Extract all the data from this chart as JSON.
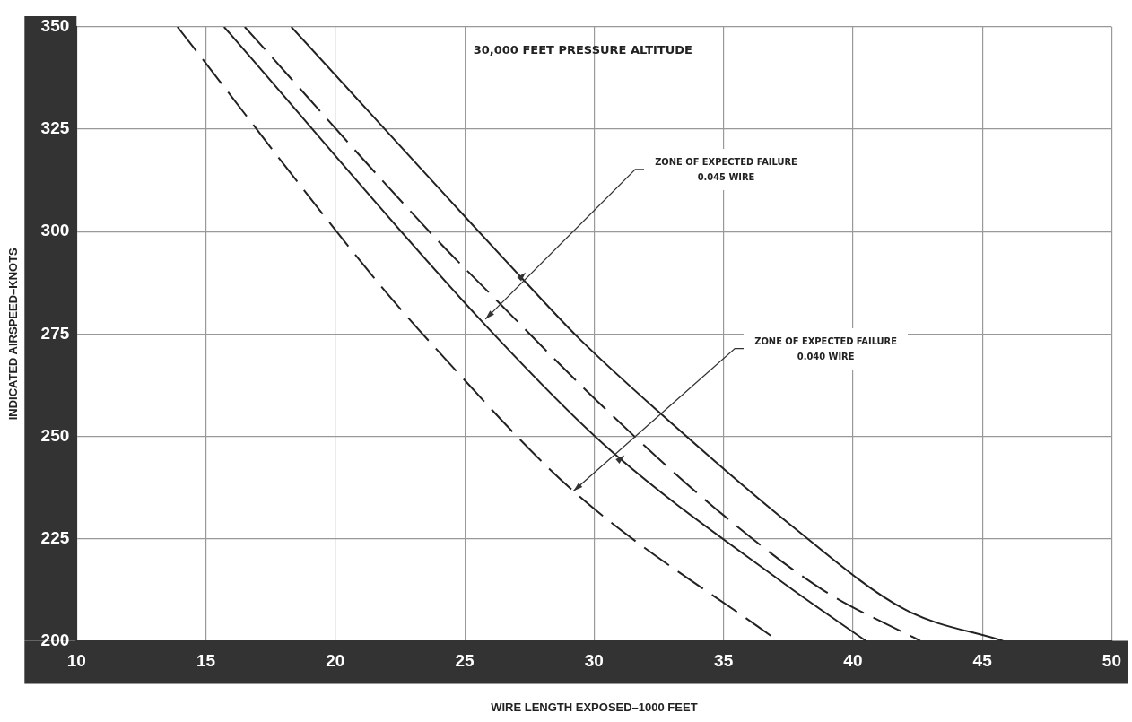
{
  "chart_data": {
    "type": "line",
    "title": "30,000 FEET PRESSURE ALTITUDE",
    "xlabel": "WIRE LENGTH EXPOSED–1000 FEET",
    "ylabel": "INDICATED AIRSPEED–KNOTS",
    "xlim": [
      10,
      50
    ],
    "xticks": [
      10,
      15,
      20,
      25,
      30,
      35,
      40,
      45,
      50
    ],
    "ylim": [
      200,
      350
    ],
    "yticks": [
      200,
      225,
      250,
      275,
      300,
      325,
      350
    ],
    "grid": true,
    "legend": false,
    "marker": "none",
    "series": [
      {
        "color": "#222222",
        "line_style": "dashed",
        "x": [
          13.9,
          21.5,
          23.9,
          29.2,
          37.1
        ],
        "values": [
          350,
          288.7,
          271.3,
          236.6,
          200
        ]
      },
      {
        "color": "#222222",
        "line_style": "solid",
        "x": [
          15.7,
          25.6,
          30.5,
          37.3,
          40.5
        ],
        "values": [
          350,
          278.5,
          247.3,
          214.2,
          200
        ]
      },
      {
        "color": "#222222",
        "line_style": "dashed",
        "x": [
          16.5,
          23.9,
          26.0,
          30.1,
          34.6,
          38.8,
          42.6
        ],
        "values": [
          350,
          298.2,
          284.7,
          258.7,
          232.8,
          212.6,
          200
        ]
      },
      {
        "color": "#222222",
        "line_style": "solid",
        "x": [
          18.3,
          27.3,
          29.4,
          32.4,
          37.6,
          42.0,
          45.8
        ],
        "values": [
          350,
          288,
          274,
          256.5,
          228.3,
          207.7,
          200
        ]
      }
    ],
    "annotations": [
      {
        "text": "ZONE OF EXPECTED FAILURE\n0.045 WIRE",
        "x": 25.8,
        "y": 278.6
      },
      {
        "text": "ZONE OF EXPECTED FAILURE\n0.040 WIRE",
        "x": 29.2,
        "y": 236.6
      }
    ]
  }
}
